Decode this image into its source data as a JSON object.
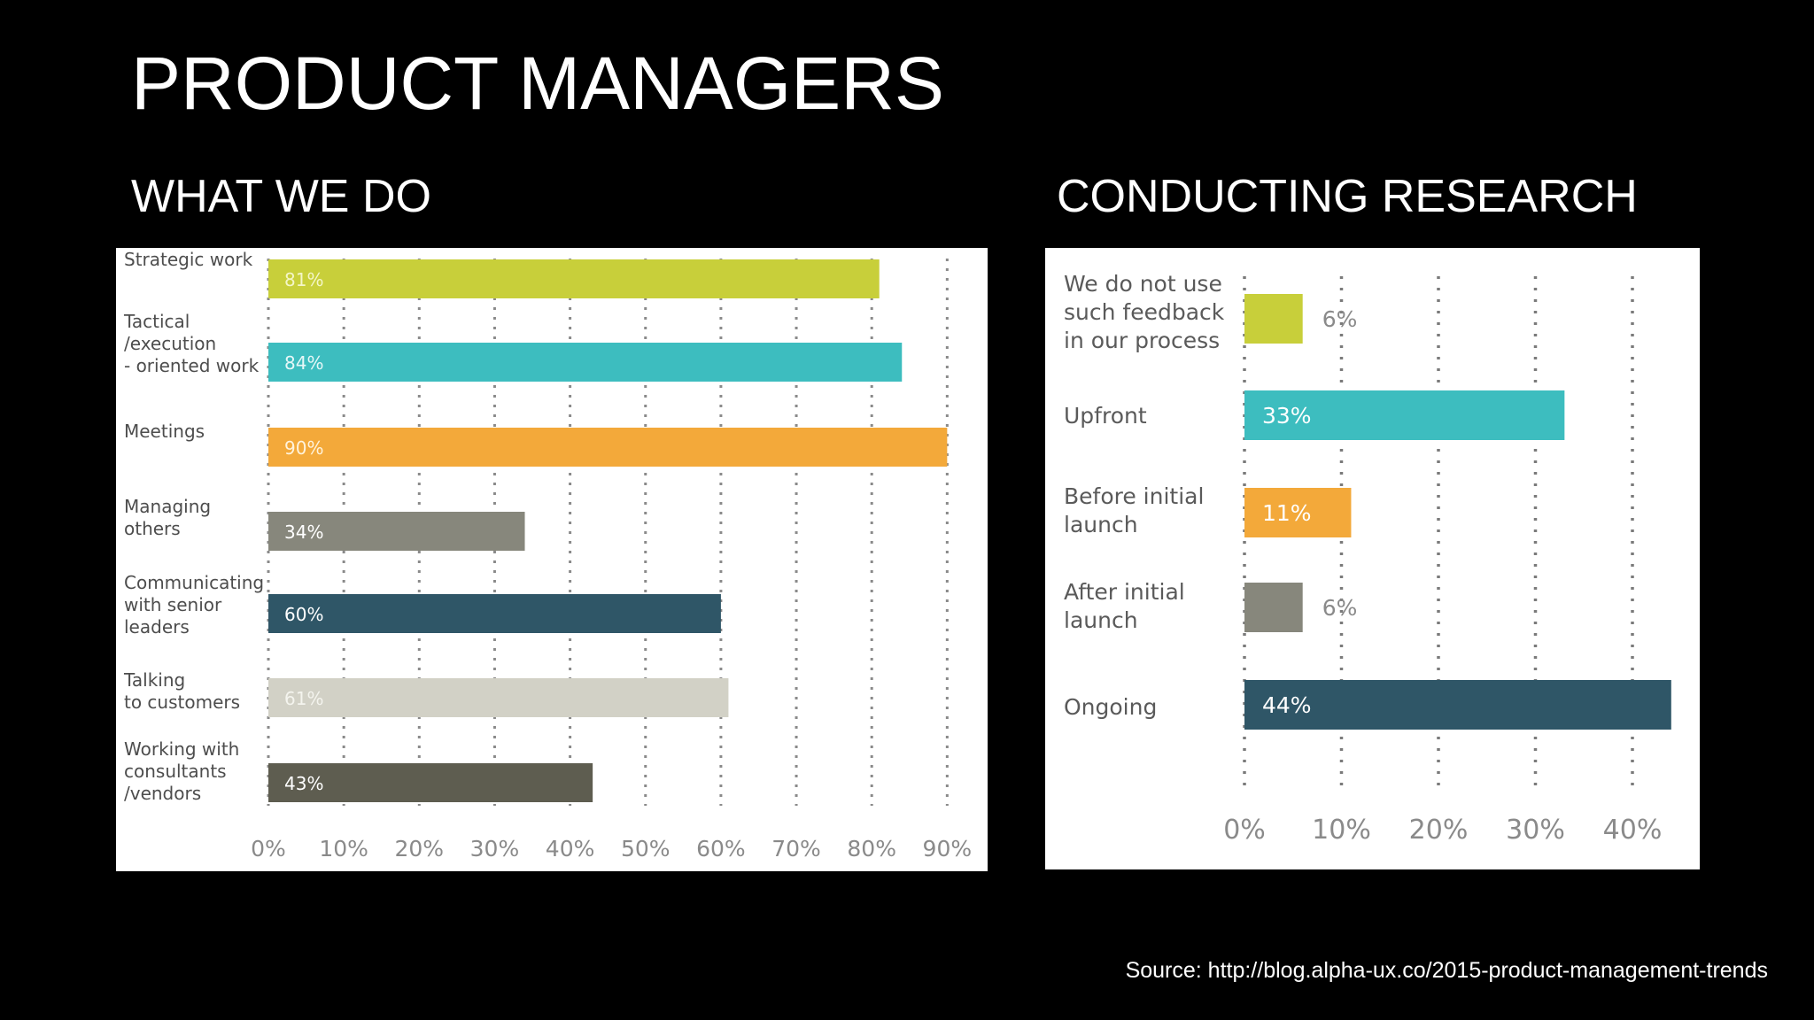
{
  "slide": {
    "title": "PRODUCT MANAGERS",
    "left_heading": "WHAT WE DO",
    "right_heading": "CONDUCTING RESEARCH",
    "source": "Source: http://blog.alpha-ux.co/2015-product-management-trends"
  },
  "chart_data": [
    {
      "type": "bar",
      "orientation": "horizontal",
      "title": "WHAT WE DO",
      "categories": [
        [
          "Strategic work"
        ],
        [
          "Tactical",
          "/execution",
          "- oriented work"
        ],
        [
          "Meetings"
        ],
        [
          "Managing",
          "others"
        ],
        [
          "Communicating",
          "with senior",
          "leaders"
        ],
        [
          "Talking",
          "to customers"
        ],
        [
          "Working with",
          "consultants",
          "/vendors"
        ]
      ],
      "values": [
        81,
        84,
        90,
        34,
        60,
        61,
        43
      ],
      "value_labels": [
        "81%",
        "84%",
        "90%",
        "34%",
        "60%",
        "61%",
        "43%"
      ],
      "colors": [
        "#c8cf3a",
        "#3dbdbf",
        "#f3a93a",
        "#87877c",
        "#2f5667",
        "#d2d1c6",
        "#5e5d50"
      ],
      "label_colors": [
        "#f4f6c8",
        "#e6f7f7",
        "#fff3dc",
        "#ffffff",
        "#ffffff",
        "#f4f4ee",
        "#ffffff"
      ],
      "xlim": [
        0,
        90
      ],
      "ticks": [
        0,
        10,
        20,
        30,
        40,
        50,
        60,
        70,
        80,
        90
      ],
      "tick_labels": [
        "0%",
        "10%",
        "20%",
        "30%",
        "40%",
        "50%",
        "60%",
        "70%",
        "80%",
        "90%"
      ],
      "grid": "vertical dotted"
    },
    {
      "type": "bar",
      "orientation": "horizontal",
      "title": "CONDUCTING RESEARCH",
      "categories": [
        [
          "We do not use",
          "such feedback",
          "in our process"
        ],
        [
          "Upfront"
        ],
        [
          "Before initial",
          "launch"
        ],
        [
          "After initial",
          "launch"
        ],
        [
          "Ongoing"
        ]
      ],
      "values": [
        6,
        33,
        11,
        6,
        44
      ],
      "value_labels": [
        "6%",
        "33%",
        "11%",
        "6%",
        "44%"
      ],
      "colors": [
        "#c8cf3a",
        "#3dbdbf",
        "#f3a93a",
        "#87877c",
        "#2f5667"
      ],
      "label_inside": [
        false,
        true,
        true,
        false,
        true
      ],
      "xlim": [
        0,
        44
      ],
      "ticks": [
        0,
        10,
        20,
        30,
        40
      ],
      "tick_labels": [
        "0%",
        "10%",
        "20%",
        "30%",
        "40%"
      ],
      "grid": "vertical dotted"
    }
  ]
}
